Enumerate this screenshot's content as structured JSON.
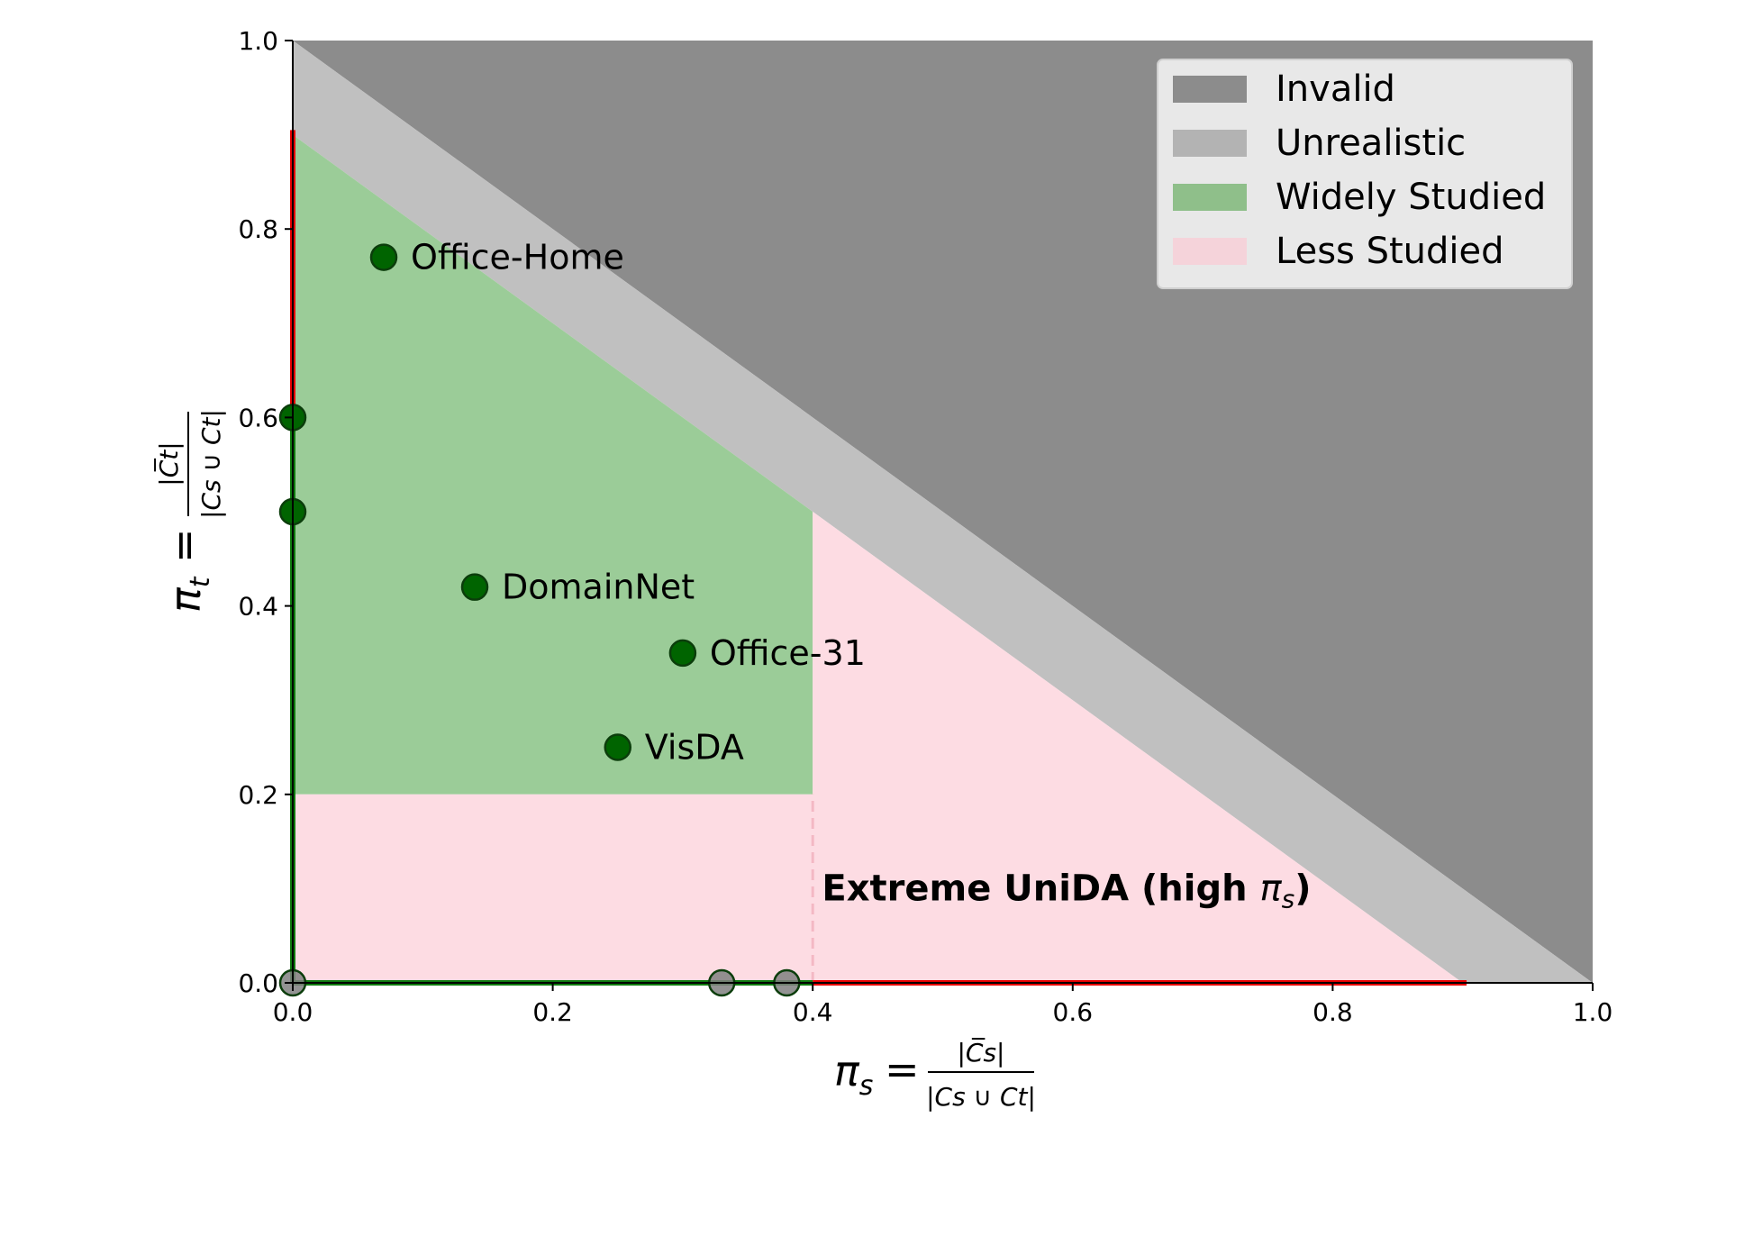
{
  "chart_data": {
    "type": "scatter",
    "title": "",
    "xlabel": {
      "lhs": "π",
      "lhs_sub": "s",
      "equals": "=",
      "numerator": "|C̅s|",
      "denominator": "|Cs ∪ Ct|"
    },
    "ylabel": {
      "lhs": "π",
      "lhs_sub": "t",
      "equals": "=",
      "numerator": "|C̅t|",
      "denominator": "|Cs ∪ Ct|"
    },
    "xlim": [
      0.0,
      1.0
    ],
    "ylim": [
      0.0,
      1.0
    ],
    "xticks": [
      "0.0",
      "0.2",
      "0.4",
      "0.6",
      "0.8",
      "1.0"
    ],
    "yticks": [
      "0.0",
      "0.2",
      "0.4",
      "0.6",
      "0.8",
      "1.0"
    ],
    "grid": false,
    "legend_position": "top-right",
    "regions": [
      {
        "id": "invalid",
        "label": "Invalid",
        "color": "#8c8c8c",
        "polygon": [
          [
            0,
            1
          ],
          [
            1,
            1
          ],
          [
            1,
            0
          ]
        ]
      },
      {
        "id": "unrealistic",
        "label": "Unrealistic",
        "color": "#c0c0c0",
        "polygon": [
          [
            0,
            1
          ],
          [
            1,
            0
          ],
          [
            0.9,
            0
          ],
          [
            0,
            0.9
          ]
        ]
      },
      {
        "id": "widely",
        "label": "Widely Studied",
        "color": "#9bcc98",
        "polygon": [
          [
            0,
            0.2
          ],
          [
            0.4,
            0.2
          ],
          [
            0.4,
            0.5
          ],
          [
            0,
            0.9
          ]
        ]
      },
      {
        "id": "less",
        "label": "Less Studied",
        "color": "#fddce3",
        "polygon": [
          [
            0,
            0
          ],
          [
            0.9,
            0
          ],
          [
            0.4,
            0.5
          ],
          [
            0.4,
            0.2
          ],
          [
            0,
            0.2
          ]
        ]
      }
    ],
    "legend": [
      {
        "label": "Invalid",
        "color": "#8c8c8c"
      },
      {
        "label": "Unrealistic",
        "color": "#b3b3b3"
      },
      {
        "label": "Widely Studied",
        "color": "#8fbf8a"
      },
      {
        "label": "Less Studied",
        "color": "#f5d3da"
      }
    ],
    "edge_lines": [
      {
        "color": "#e60000",
        "points": [
          [
            0,
            0.6
          ],
          [
            0,
            0.905
          ]
        ]
      },
      {
        "color": "#e60000",
        "points": [
          [
            0.4,
            0
          ],
          [
            0.903,
            0
          ]
        ]
      },
      {
        "color": "#0f7a0f",
        "points": [
          [
            0,
            0
          ],
          [
            0,
            0.6
          ]
        ]
      },
      {
        "color": "#0f7a0f",
        "points": [
          [
            0,
            0
          ],
          [
            0.4,
            0
          ]
        ]
      }
    ],
    "divider": {
      "color": "#f4b8c4",
      "points": [
        [
          0.4,
          0
        ],
        [
          0.4,
          0.2
        ]
      ]
    },
    "points": [
      {
        "label": "Office-Home",
        "x": 0.07,
        "y": 0.77,
        "color": "#006400"
      },
      {
        "label": "DomainNet",
        "x": 0.14,
        "y": 0.42,
        "color": "#006400"
      },
      {
        "label": "Office-31",
        "x": 0.3,
        "y": 0.35,
        "color": "#006400"
      },
      {
        "label": "VisDA",
        "x": 0.25,
        "y": 0.25,
        "color": "#006400"
      },
      {
        "label": "",
        "x": 0.0,
        "y": 0.6,
        "color": "#006400"
      },
      {
        "label": "",
        "x": 0.0,
        "y": 0.5,
        "color": "#006400"
      },
      {
        "label": "",
        "x": 0.0,
        "y": 0.0,
        "color": "#808080"
      },
      {
        "label": "",
        "x": 0.33,
        "y": 0.0,
        "color": "#808080"
      },
      {
        "label": "",
        "x": 0.38,
        "y": 0.0,
        "color": "#808080"
      }
    ],
    "annotation": {
      "text_main": "Extreme UniDA (high ",
      "text_pi": "π",
      "text_sub": "s",
      "text_close": ")",
      "x": 0.405,
      "y": 0.1
    }
  }
}
